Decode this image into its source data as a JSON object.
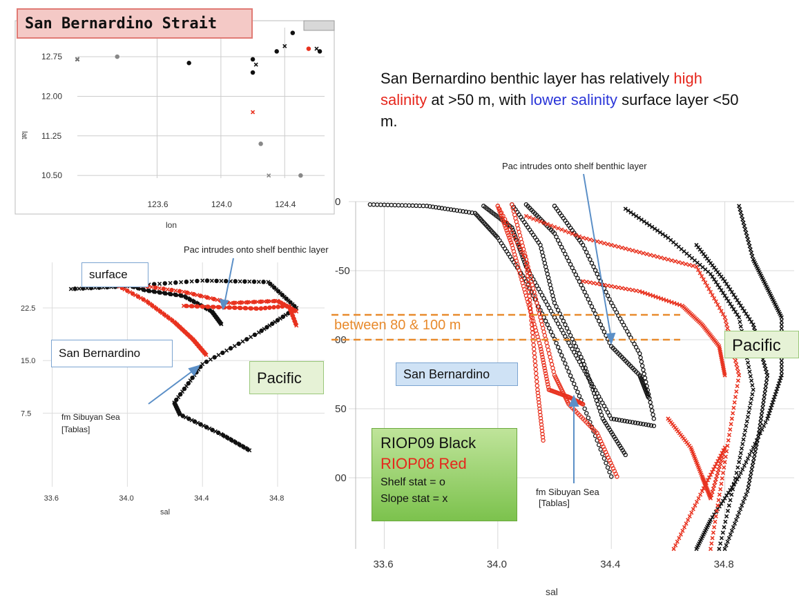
{
  "title": "San Bernardino Strait",
  "note": {
    "part1": "San Bernardino benthic layer has relatively ",
    "high": "high salinity",
    "part2": " at >50 m, with ",
    "low": "lower salinity",
    "part3": " surface layer <50 m."
  },
  "labels": {
    "pac_intrudes_big": "Pac intrudes onto shelf benthic layer",
    "pac_intrudes_small": "Pac intrudes onto shelf benthic layer",
    "between": "between 80 & 100 m",
    "pacific_big": "Pacific",
    "pacific_small": "Pacific",
    "san_bern_big": "San Bernardino",
    "san_bern_small": "San Bernardino",
    "surface": "surface",
    "sibuyan_big_1": "fm Sibuyan Sea",
    "sibuyan_big_2": "[Tablas]",
    "sibuyan_small_1": "fm Sibuyan Sea",
    "sibuyan_small_2": "[Tablas]"
  },
  "legend": {
    "black": "RIOP09 Black",
    "red": "RIOP08 Red",
    "shelf": "Shelf stat = o",
    "slope": "Slope stat = x"
  },
  "colors": {
    "black_series": "#111111",
    "red_series": "#e8321f",
    "title_bg": "#f4c9c6",
    "pacific_box": "#e6f2d6",
    "san_bern_box": "#cfe2f5",
    "legend_green": "#7cc24d",
    "between_orange": "#e88a2c",
    "arrow_blue": "#5b8fc7"
  },
  "chart_data": [
    {
      "type": "scatter",
      "title": "",
      "xlabel": "lon",
      "ylabel": "lat",
      "xlim": [
        123.1,
        124.65
      ],
      "ylim": [
        10.45,
        13.3
      ],
      "x_ticks": [
        "123.6",
        "124.0",
        "124.4"
      ],
      "y_ticks": [
        "12.75",
        "12.00",
        "11.25",
        "10.50"
      ],
      "series": [
        {
          "color": "black",
          "x": [
            123.1,
            123.8,
            124.2,
            124.22,
            124.2,
            124.35,
            124.4,
            124.45,
            124.62,
            124.6
          ],
          "y": [
            12.7,
            12.63,
            12.7,
            12.6,
            12.45,
            12.85,
            12.95,
            13.2,
            12.85,
            12.9
          ]
        },
        {
          "color": "red",
          "x": [
            124.2,
            124.55
          ],
          "y": [
            11.7,
            12.9
          ]
        },
        {
          "color": "gray",
          "x": [
            123.1,
            123.35,
            124.25,
            124.3,
            124.5
          ],
          "y": [
            12.71,
            12.75,
            11.1,
            10.5,
            10.5
          ]
        }
      ]
    },
    {
      "type": "line",
      "title": "",
      "xlabel": "sal",
      "ylabel": "",
      "xlim": [
        33.55,
        35.05
      ],
      "ylim": [
        -3,
        29
      ],
      "x_ticks": [
        "33.6",
        "34.0",
        "34.4",
        "34.8"
      ],
      "y_ticks": [
        "22.5",
        "15.0",
        "7.5"
      ],
      "series": [
        {
          "color": "black",
          "x": [
            33.7,
            34.0,
            34.4,
            34.75,
            34.9,
            34.7,
            34.4,
            34.25,
            34.28,
            34.5,
            34.65
          ],
          "y": [
            25.2,
            25.6,
            26.4,
            26.2,
            22.5,
            19.0,
            14.5,
            9.0,
            7.3,
            4.5,
            2.2
          ]
        },
        {
          "color": "black",
          "x": [
            33.9,
            34.1,
            34.3,
            34.45,
            34.5
          ],
          "y": [
            26.5,
            25.0,
            24.2,
            22.0,
            20.2
          ]
        },
        {
          "color": "red",
          "x": [
            33.9,
            34.1,
            34.25,
            34.35,
            34.42
          ],
          "y": [
            26.4,
            23.5,
            20.5,
            18.0,
            15.8
          ]
        },
        {
          "color": "red",
          "x": [
            34.0,
            34.3,
            34.55,
            34.8,
            34.9
          ],
          "y": [
            26.0,
            24.8,
            23.2,
            23.5,
            22.0
          ]
        },
        {
          "color": "red",
          "x": [
            34.3,
            34.5,
            34.7,
            34.86,
            34.9
          ],
          "y": [
            22.8,
            22.6,
            22.4,
            22.8,
            20.0
          ]
        }
      ]
    },
    {
      "type": "line",
      "title": "",
      "xlabel": "sal",
      "ylabel": "",
      "xlim": [
        33.56,
        35.02
      ],
      "ylim": [
        240,
        0
      ],
      "x_ticks": [
        "33.6",
        "34.0",
        "34.4",
        "34.8"
      ],
      "y_ticks": [
        "0",
        "-50",
        "00",
        "50",
        "00"
      ],
      "series": [
        {
          "color": "black",
          "x": [
            33.55,
            33.75,
            33.92,
            34.0,
            34.1,
            34.2,
            34.3,
            34.4
          ],
          "y": [
            2,
            3,
            8,
            25,
            55,
            95,
            140,
            190
          ]
        },
        {
          "color": "black",
          "x": [
            33.95,
            34.05,
            34.1,
            34.2,
            34.3,
            34.4,
            34.55
          ],
          "y": [
            3,
            18,
            45,
            80,
            115,
            150,
            155
          ]
        },
        {
          "color": "black",
          "x": [
            34.05,
            34.15,
            34.2,
            34.3,
            34.37,
            34.45
          ],
          "y": [
            2,
            30,
            70,
            110,
            150,
            175
          ]
        },
        {
          "color": "black",
          "x": [
            34.1,
            34.2,
            34.3,
            34.4,
            34.5,
            34.53
          ],
          "y": [
            2,
            22,
            60,
            100,
            120,
            135
          ]
        },
        {
          "color": "black",
          "x": [
            34.2,
            34.3,
            34.4,
            34.5,
            34.55
          ],
          "y": [
            3,
            30,
            70,
            105,
            150
          ]
        },
        {
          "color": "black",
          "x": [
            34.85,
            34.9,
            34.95,
            35.0,
            35.0,
            34.95,
            34.85,
            34.75,
            34.7
          ],
          "y": [
            3,
            40,
            60,
            80,
            120,
            150,
            190,
            220,
            240
          ]
        },
        {
          "color": "black",
          "x": [
            34.45,
            34.6,
            34.75,
            34.85,
            34.9,
            34.85,
            34.78
          ],
          "y": [
            5,
            25,
            50,
            80,
            130,
            180,
            240
          ]
        },
        {
          "color": "black",
          "x": [
            34.7,
            34.8,
            34.9,
            34.95,
            34.92,
            34.88,
            34.8
          ],
          "y": [
            30,
            55,
            85,
            120,
            160,
            200,
            240
          ]
        },
        {
          "color": "red",
          "x": [
            34.0,
            34.05,
            34.1,
            34.15,
            34.18,
            34.25,
            34.3
          ],
          "y": [
            3,
            30,
            65,
            100,
            130,
            135,
            140
          ]
        },
        {
          "color": "red",
          "x": [
            34.0,
            34.1,
            34.15,
            34.2,
            34.25,
            34.35,
            34.42
          ],
          "y": [
            3,
            40,
            80,
            120,
            140,
            160,
            190
          ]
        },
        {
          "color": "red",
          "x": [
            34.05,
            34.1,
            34.12,
            34.14,
            34.16
          ],
          "y": [
            2,
            40,
            85,
            130,
            165
          ]
        },
        {
          "color": "red",
          "x": [
            34.1,
            34.3,
            34.5,
            34.7,
            34.8,
            34.85,
            34.8,
            34.75
          ],
          "y": [
            10,
            25,
            35,
            45,
            80,
            120,
            180,
            240
          ]
        },
        {
          "color": "red",
          "x": [
            34.3,
            34.5,
            34.65,
            34.72,
            34.78,
            34.8
          ],
          "y": [
            55,
            62,
            72,
            85,
            100,
            120
          ]
        },
        {
          "color": "red",
          "x": [
            34.6,
            34.68,
            34.72,
            34.75,
            34.8,
            34.72,
            34.62
          ],
          "y": [
            150,
            170,
            190,
            205,
            170,
            200,
            240
          ]
        }
      ]
    }
  ]
}
